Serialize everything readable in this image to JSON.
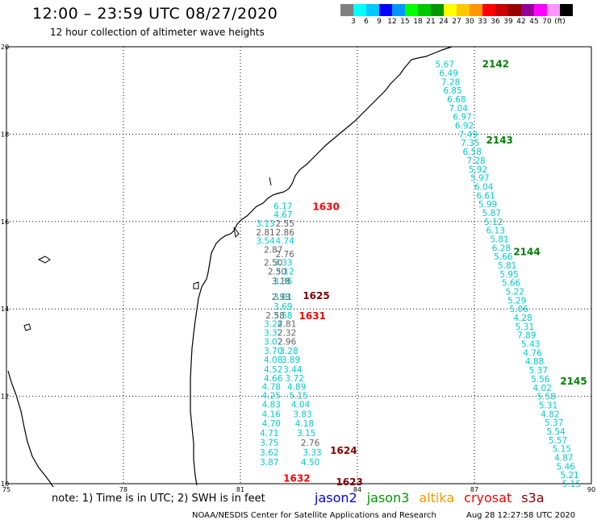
{
  "header": {
    "title": "12:00 – 23:59 UTC 08/27/2020",
    "subtitle": "12 hour collection of altimeter wave heights"
  },
  "legend": {
    "colors": [
      "#808080",
      "#00ffff",
      "#00c8ff",
      "#0000ff",
      "#0096ff",
      "#00ff00",
      "#00c800",
      "#009600",
      "#ffff00",
      "#ffc800",
      "#ff9600",
      "#ff0000",
      "#c80000",
      "#960000",
      "#960096",
      "#ff00ff",
      "#ff96ff",
      "#000000"
    ],
    "labels": [
      "3",
      "6",
      "9",
      "12",
      "15",
      "18",
      "21",
      "24",
      "27",
      "30",
      "33",
      "36",
      "39",
      "42",
      "45",
      "70",
      "(ft)"
    ]
  },
  "axes": {
    "x_ticks": [
      "75",
      "78",
      "81",
      "84",
      "87",
      "90"
    ],
    "y_ticks": [
      "20",
      "18",
      "16",
      "14",
      "12",
      "10"
    ]
  },
  "passes": [
    {
      "id": "2142",
      "color": "#008000",
      "lon": 87.2,
      "lat": 19.6
    },
    {
      "id": "2143",
      "color": "#008000",
      "lon": 87.3,
      "lat": 17.86
    },
    {
      "id": "2144",
      "color": "#008000",
      "lon": 88.0,
      "lat": 15.3
    },
    {
      "id": "2145",
      "color": "#008000",
      "lon": 89.2,
      "lat": 12.34
    },
    {
      "id": "1630",
      "color": "#ff0000",
      "lon": 82.85,
      "lat": 16.34
    },
    {
      "id": "1625",
      "color": "#800000",
      "lon": 82.6,
      "lat": 14.3
    },
    {
      "id": "1631",
      "color": "#ff0000",
      "lon": 82.5,
      "lat": 13.84
    },
    {
      "id": "1624",
      "color": "#800000",
      "lon": 83.3,
      "lat": 10.76
    },
    {
      "id": "1632",
      "color": "#ff0000",
      "lon": 82.1,
      "lat": 10.12
    },
    {
      "id": "1623",
      "color": "#800000",
      "lon": 83.45,
      "lat": 10.04
    }
  ],
  "tracks": [
    {
      "name": "2142-2145",
      "color": "#00cccc",
      "points": [
        {
          "lon": 86.0,
          "lat": 19.6,
          "swh": "5.67"
        },
        {
          "lon": 86.1,
          "lat": 19.4,
          "swh": "6.49"
        },
        {
          "lon": 86.15,
          "lat": 19.2,
          "swh": "7.28"
        },
        {
          "lon": 86.2,
          "lat": 19.0,
          "swh": "6.85"
        },
        {
          "lon": 86.3,
          "lat": 18.8,
          "swh": "6.68"
        },
        {
          "lon": 86.35,
          "lat": 18.6,
          "swh": "7.04"
        },
        {
          "lon": 86.45,
          "lat": 18.4,
          "swh": "6.97"
        },
        {
          "lon": 86.5,
          "lat": 18.2,
          "swh": "6.92"
        },
        {
          "lon": 86.6,
          "lat": 18.0,
          "swh": "7.49"
        },
        {
          "lon": 86.65,
          "lat": 17.8,
          "swh": "7.35"
        },
        {
          "lon": 86.7,
          "lat": 17.6,
          "swh": "6.58"
        },
        {
          "lon": 86.8,
          "lat": 17.4,
          "swh": "7.28"
        },
        {
          "lon": 86.85,
          "lat": 17.2,
          "swh": "5.92"
        },
        {
          "lon": 86.9,
          "lat": 17.0,
          "swh": "5.97"
        },
        {
          "lon": 87.0,
          "lat": 16.8,
          "swh": "6.04"
        },
        {
          "lon": 87.05,
          "lat": 16.6,
          "swh": "6.61"
        },
        {
          "lon": 87.1,
          "lat": 16.4,
          "swh": "5.99"
        },
        {
          "lon": 87.2,
          "lat": 16.2,
          "swh": "5.87"
        },
        {
          "lon": 87.25,
          "lat": 16.0,
          "swh": "5.12"
        },
        {
          "lon": 87.3,
          "lat": 15.8,
          "swh": "6.13"
        },
        {
          "lon": 87.4,
          "lat": 15.6,
          "swh": "5.81"
        },
        {
          "lon": 87.45,
          "lat": 15.4,
          "swh": "6.28"
        },
        {
          "lon": 87.5,
          "lat": 15.2,
          "swh": "5.66"
        },
        {
          "lon": 87.6,
          "lat": 15.0,
          "swh": "5.81"
        },
        {
          "lon": 87.65,
          "lat": 14.8,
          "swh": "5.95"
        },
        {
          "lon": 87.7,
          "lat": 14.6,
          "swh": "5.66"
        },
        {
          "lon": 87.8,
          "lat": 14.4,
          "swh": "5.22"
        },
        {
          "lon": 87.85,
          "lat": 14.2,
          "swh": "5.29"
        },
        {
          "lon": 87.9,
          "lat": 14.0,
          "swh": "5.06"
        },
        {
          "lon": 88.0,
          "lat": 13.8,
          "swh": "4.28"
        },
        {
          "lon": 88.05,
          "lat": 13.6,
          "swh": "5.31"
        },
        {
          "lon": 88.1,
          "lat": 13.4,
          "swh": "7.89"
        },
        {
          "lon": 88.2,
          "lat": 13.2,
          "swh": "5.43"
        },
        {
          "lon": 88.25,
          "lat": 13.0,
          "swh": "4.76"
        },
        {
          "lon": 88.3,
          "lat": 12.8,
          "swh": "4.88"
        },
        {
          "lon": 88.4,
          "lat": 12.6,
          "swh": "5.37"
        },
        {
          "lon": 88.45,
          "lat": 12.4,
          "swh": "5.56"
        },
        {
          "lon": 88.5,
          "lat": 12.2,
          "swh": "4.02"
        },
        {
          "lon": 88.6,
          "lat": 12.0,
          "swh": "5.58"
        },
        {
          "lon": 88.65,
          "lat": 11.8,
          "swh": "5.31"
        },
        {
          "lon": 88.7,
          "lat": 11.6,
          "swh": "4.82"
        },
        {
          "lon": 88.8,
          "lat": 11.4,
          "swh": "5.37"
        },
        {
          "lon": 88.85,
          "lat": 11.2,
          "swh": "5.54"
        },
        {
          "lon": 88.9,
          "lat": 11.0,
          "swh": "5.57"
        },
        {
          "lon": 89.0,
          "lat": 10.8,
          "swh": "5.15"
        },
        {
          "lon": 89.05,
          "lat": 10.6,
          "swh": "4.87"
        },
        {
          "lon": 89.1,
          "lat": 10.4,
          "swh": "5.46"
        },
        {
          "lon": 89.2,
          "lat": 10.2,
          "swh": "5.21"
        },
        {
          "lon": 89.25,
          "lat": 10.0,
          "swh": "5.15"
        }
      ]
    },
    {
      "name": "1630-1631",
      "color": "#00cccc",
      "points": [
        {
          "lon": 81.85,
          "lat": 16.36,
          "swh": "6.17"
        },
        {
          "lon": 81.85,
          "lat": 16.16,
          "swh": "4.67"
        },
        {
          "lon": 81.4,
          "lat": 15.96,
          "swh": "3.13"
        },
        {
          "lon": 81.4,
          "lat": 15.56,
          "swh": "3.54"
        },
        {
          "lon": 81.9,
          "lat": 15.56,
          "swh": "4.74"
        },
        {
          "lon": 81.85,
          "lat": 15.06,
          "swh": "3.33"
        },
        {
          "lon": 81.9,
          "lat": 14.86,
          "swh": "3.12"
        },
        {
          "lon": 81.85,
          "lat": 14.64,
          "swh": "3.36"
        },
        {
          "lon": 81.85,
          "lat": 14.28,
          "swh": "3.01"
        },
        {
          "lon": 81.85,
          "lat": 14.06,
          "swh": "3.69"
        },
        {
          "lon": 81.85,
          "lat": 13.86,
          "swh": "3.58"
        }
      ]
    },
    {
      "name": "1630-1631-gray",
      "color": "#606060",
      "points": [
        {
          "lon": 81.9,
          "lat": 15.96,
          "swh": "2.55"
        },
        {
          "lon": 81.4,
          "lat": 15.76,
          "swh": "2.81"
        },
        {
          "lon": 81.9,
          "lat": 15.76,
          "swh": "2.86"
        },
        {
          "lon": 81.6,
          "lat": 15.36,
          "swh": "2.87"
        },
        {
          "lon": 81.9,
          "lat": 15.26,
          "swh": "2.76"
        },
        {
          "lon": 81.6,
          "lat": 15.06,
          "swh": "2.50"
        },
        {
          "lon": 81.7,
          "lat": 14.86,
          "swh": "2.50"
        },
        {
          "lon": 81.8,
          "lat": 14.64,
          "swh": "3.18"
        },
        {
          "lon": 81.8,
          "lat": 14.28,
          "swh": "2.93"
        },
        {
          "lon": 81.65,
          "lat": 13.86,
          "swh": "2.58"
        }
      ]
    },
    {
      "name": "1625-1624",
      "color": "#00cccc",
      "points": [
        {
          "lon": 81.6,
          "lat": 13.66,
          "swh": "3.24"
        },
        {
          "lon": 81.6,
          "lat": 13.46,
          "swh": "3.32"
        },
        {
          "lon": 81.6,
          "lat": 13.26,
          "swh": "3.02"
        },
        {
          "lon": 81.6,
          "lat": 13.04,
          "swh": "3.70"
        },
        {
          "lon": 82.0,
          "lat": 13.04,
          "swh": "3.28"
        },
        {
          "lon": 81.6,
          "lat": 12.84,
          "swh": "4.08"
        },
        {
          "lon": 82.05,
          "lat": 12.84,
          "swh": "3.89"
        },
        {
          "lon": 81.6,
          "lat": 12.62,
          "swh": "4.52"
        },
        {
          "lon": 82.1,
          "lat": 12.62,
          "swh": "3.44"
        },
        {
          "lon": 81.6,
          "lat": 12.42,
          "swh": "4.66"
        },
        {
          "lon": 82.15,
          "lat": 12.42,
          "swh": "3.72"
        },
        {
          "lon": 81.55,
          "lat": 12.22,
          "swh": "4.78"
        },
        {
          "lon": 82.2,
          "lat": 12.22,
          "swh": "4.89"
        },
        {
          "lon": 81.55,
          "lat": 12.02,
          "swh": "4.25"
        },
        {
          "lon": 82.25,
          "lat": 12.02,
          "swh": "5.15"
        },
        {
          "lon": 81.55,
          "lat": 11.82,
          "swh": "4.83"
        },
        {
          "lon": 82.3,
          "lat": 11.82,
          "swh": "4.04"
        },
        {
          "lon": 81.55,
          "lat": 11.6,
          "swh": "4.16"
        },
        {
          "lon": 82.35,
          "lat": 11.6,
          "swh": "3.83"
        },
        {
          "lon": 81.55,
          "lat": 11.38,
          "swh": "4.70"
        },
        {
          "lon": 82.4,
          "lat": 11.38,
          "swh": "4.18"
        },
        {
          "lon": 81.5,
          "lat": 11.16,
          "swh": "4.71"
        },
        {
          "lon": 82.45,
          "lat": 11.16,
          "swh": "3.15"
        },
        {
          "lon": 81.5,
          "lat": 10.94,
          "swh": "3.75"
        },
        {
          "lon": 81.5,
          "lat": 10.72,
          "swh": "3.62"
        },
        {
          "lon": 82.6,
          "lat": 10.72,
          "swh": "3.33"
        },
        {
          "lon": 81.5,
          "lat": 10.5,
          "swh": "3.87"
        },
        {
          "lon": 82.55,
          "lat": 10.5,
          "swh": "4.50"
        }
      ]
    },
    {
      "name": "1625-1624-gray",
      "color": "#606060",
      "points": [
        {
          "lon": 81.95,
          "lat": 13.66,
          "swh": "2.81"
        },
        {
          "lon": 81.95,
          "lat": 13.46,
          "swh": "2.32"
        },
        {
          "lon": 81.95,
          "lat": 13.26,
          "swh": "2.96"
        },
        {
          "lon": 82.55,
          "lat": 10.94,
          "swh": "2.76"
        }
      ]
    }
  ],
  "notes": "note: 1) Time is in UTC; 2) SWH is in feet",
  "satellites": [
    {
      "name": "jason2",
      "color": "#0000ff"
    },
    {
      "name": "jason3",
      "color": "#009600"
    },
    {
      "name": "altika",
      "color": "#ff9600"
    },
    {
      "name": "cryosat",
      "color": "#ff0000"
    },
    {
      "name": "s3a",
      "color": "#800000"
    }
  ],
  "footer": "NOAA/NESDIS Center for Satellite Applications and Research",
  "timestamp": "Aug 28 12:27:58 UTC 2020"
}
